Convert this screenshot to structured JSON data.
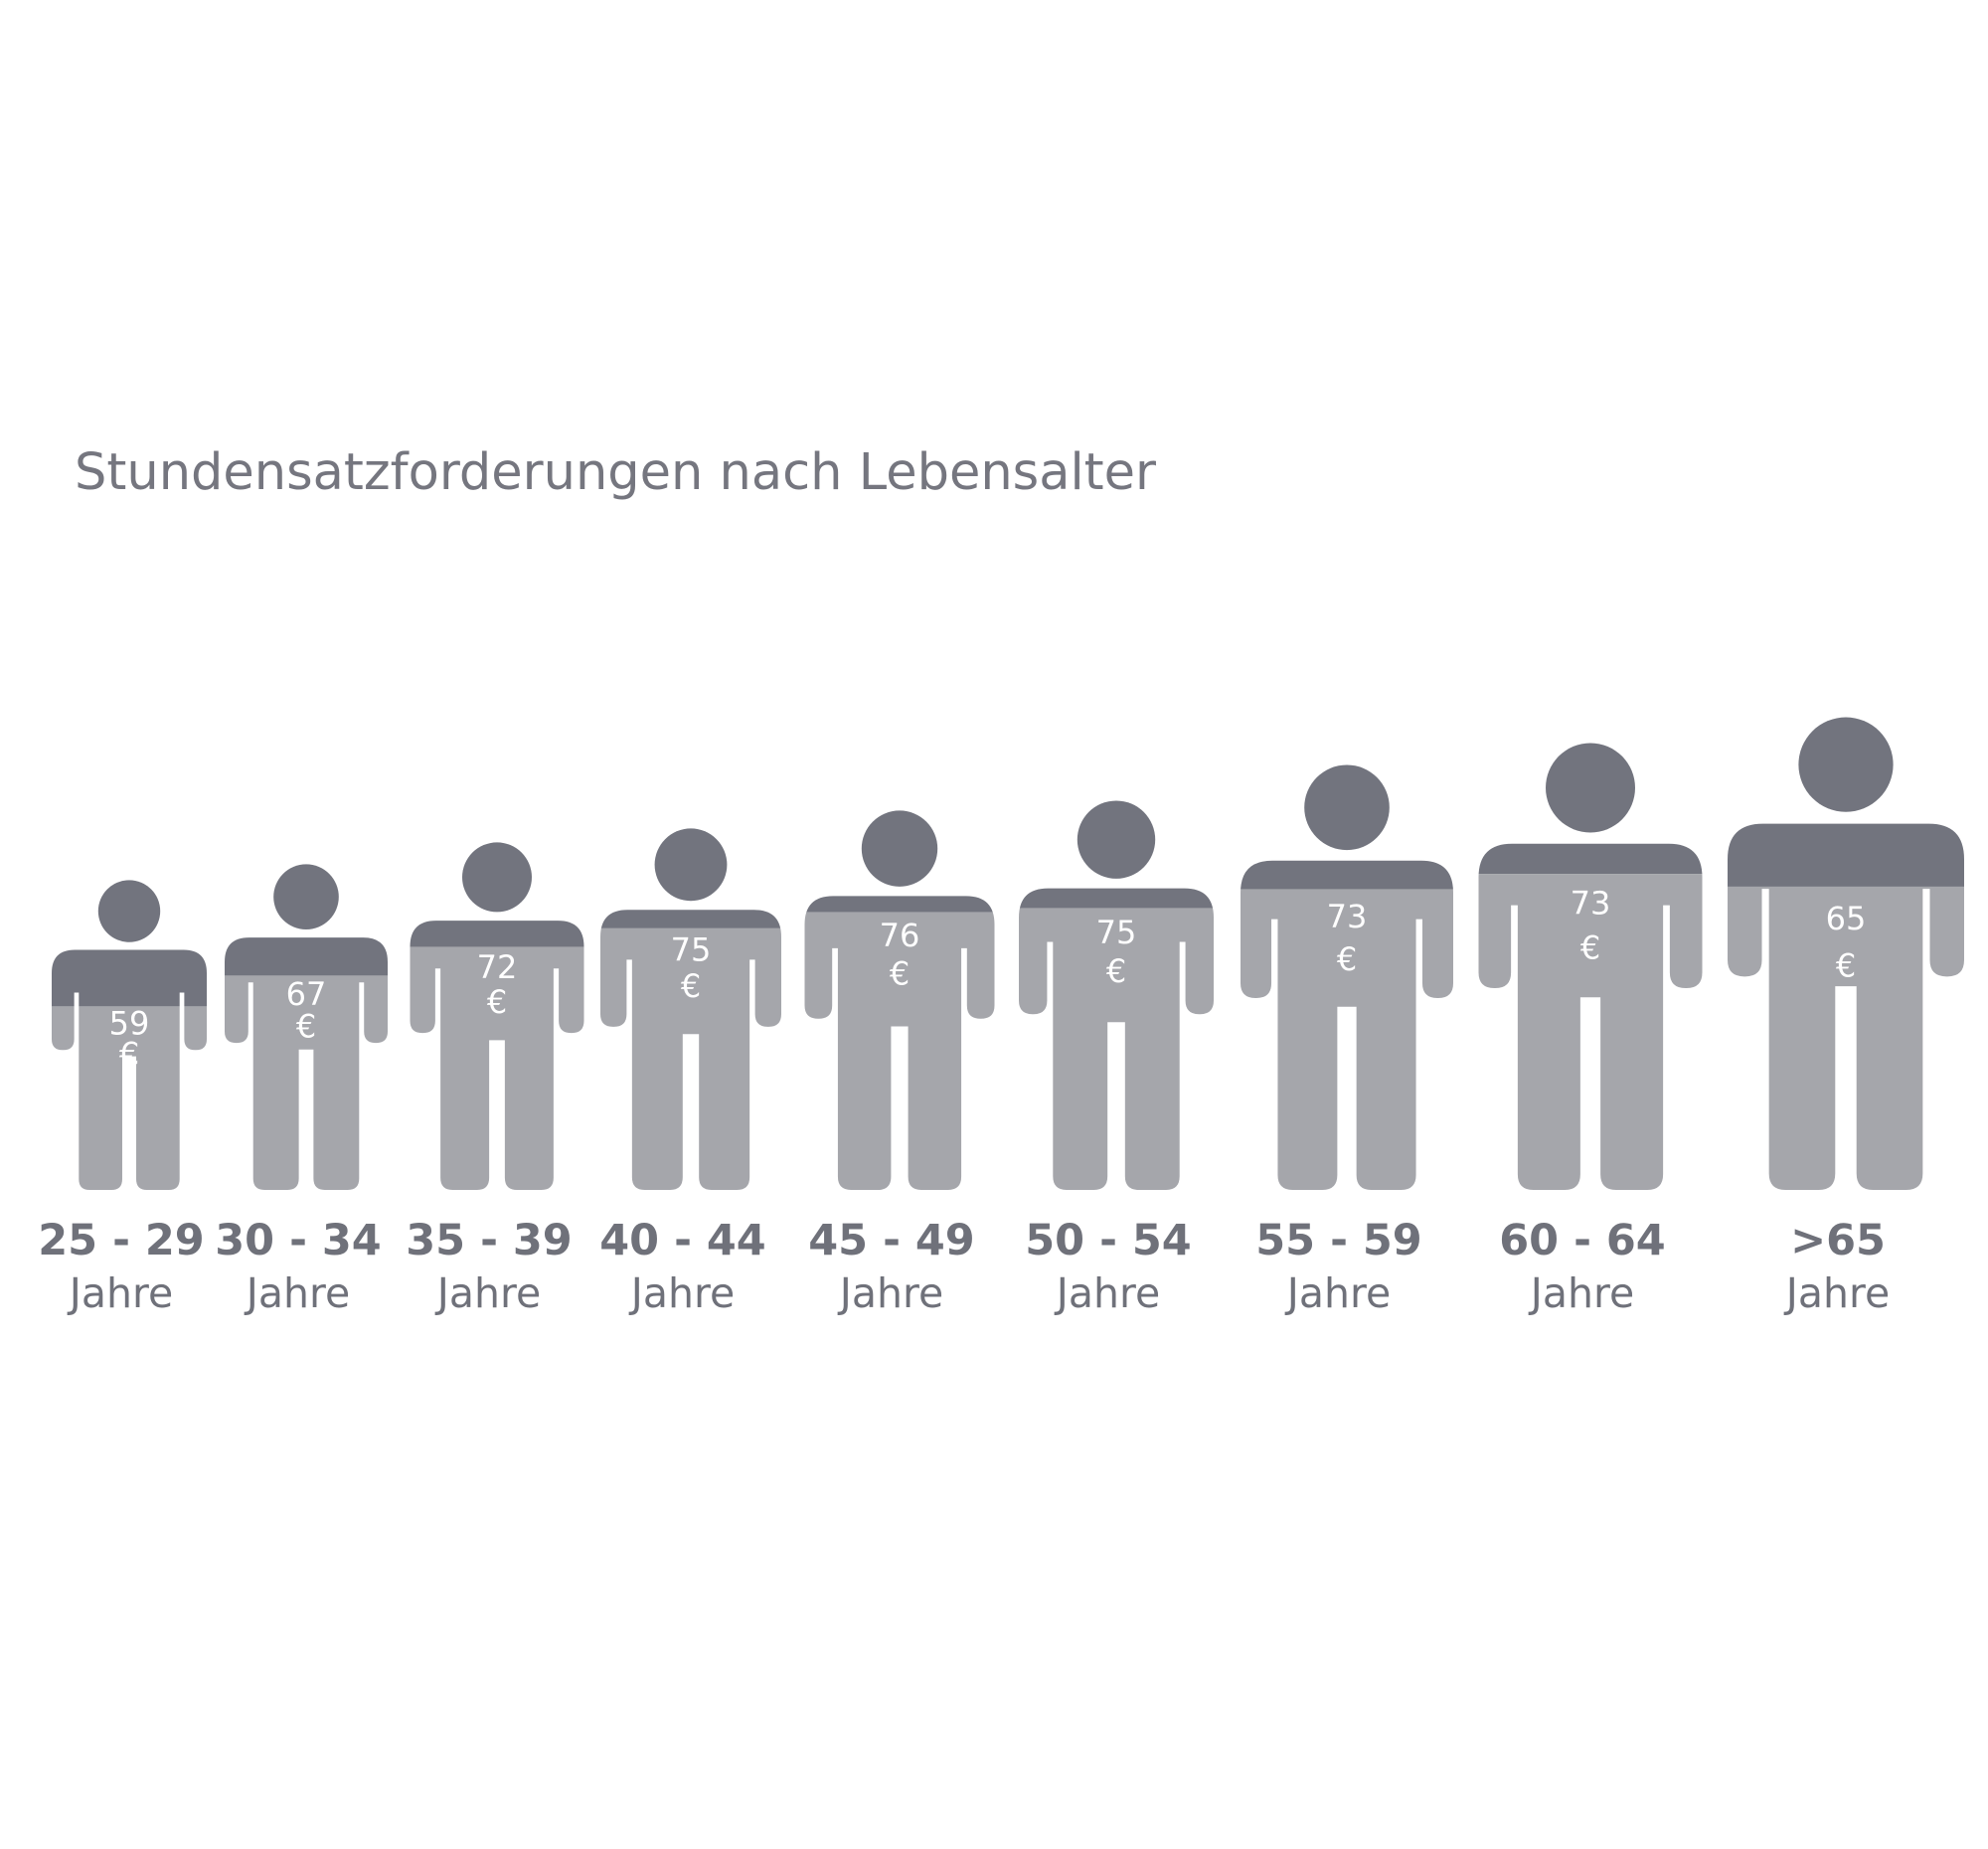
{
  "colors": {
    "dark": "#72747e",
    "light": "#a5a6ab",
    "value_text": "#ffffff",
    "title_text": "#75767f",
    "label_text": "#6f717a"
  },
  "chart_data": {
    "type": "bar",
    "title": "Stundensatzforderungen nach Lebensalter",
    "categories": [
      "25 - 29",
      "30 - 34",
      "35 - 39",
      "40 - 44",
      "45 - 49",
      "50 - 54",
      "55 - 59",
      "60 - 64",
      ">65"
    ],
    "category_suffix": "Jahre",
    "values": [
      59,
      67,
      72,
      75,
      76,
      75,
      73,
      73,
      65
    ],
    "value_unit": "€",
    "value_min": 50,
    "value_max": 80,
    "encoding": "Personensymbol; Größe wächst mit dem Alter, der hellgraue Anteil zeigt die Stundensatzforderung in €"
  }
}
